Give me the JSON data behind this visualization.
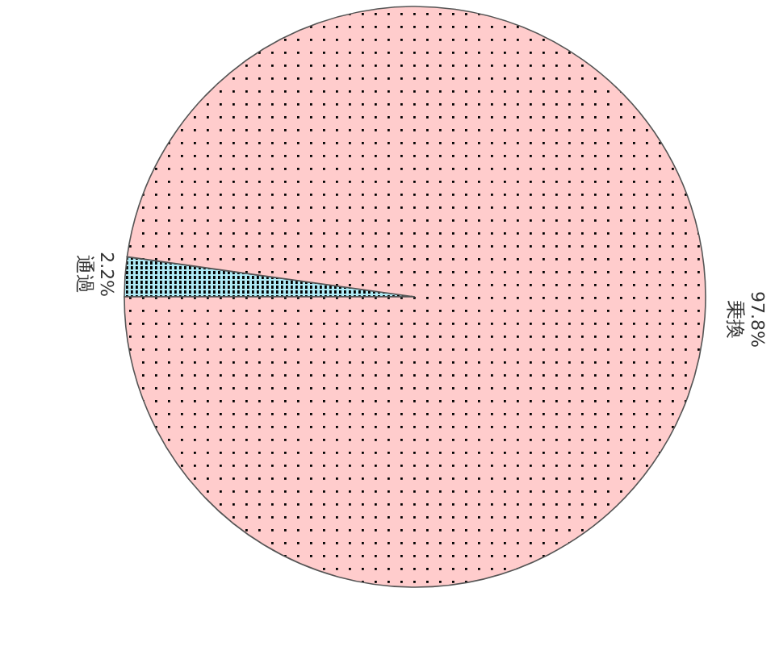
{
  "chart_data": {
    "type": "pie",
    "categories": [
      "通過",
      "乗換"
    ],
    "values": [
      2.2,
      97.8
    ],
    "colors": [
      "#aeeaf5",
      "#ffcccc"
    ],
    "value_labels": [
      "2.2%",
      "97.8%"
    ]
  }
}
